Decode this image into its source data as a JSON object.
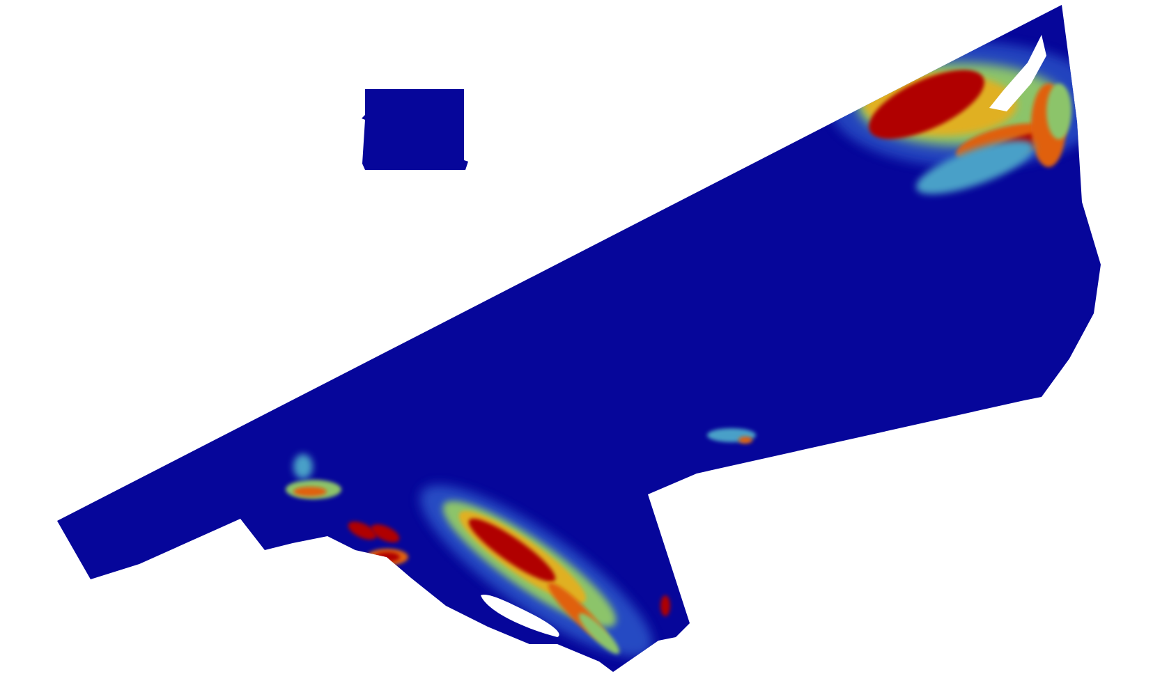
{
  "map": {
    "type": "heatmap-raster",
    "colors": {
      "background": "#ffffff",
      "base": "#06069a",
      "low": "#2b53c8",
      "mid_low": "#4aa0c8",
      "mid": "#8cc46a",
      "mid_high": "#e0b020",
      "high": "#e06010",
      "max": "#b00000"
    }
  }
}
